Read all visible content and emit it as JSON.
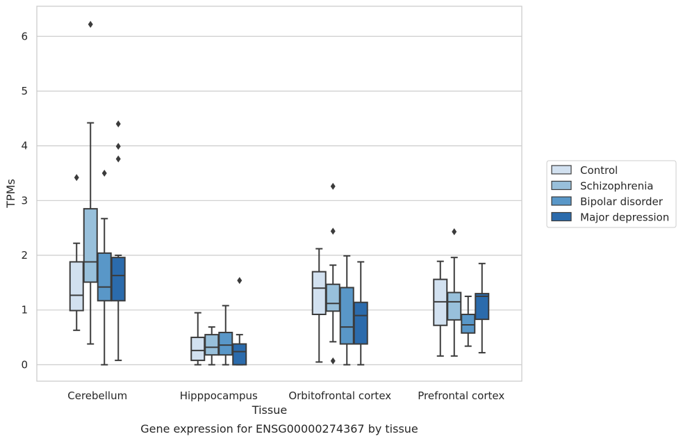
{
  "chart_data": {
    "type": "box",
    "caption": "Gene expression for ENSG00000274367 by tissue",
    "xlabel": "Tissue",
    "ylabel": "TPMs",
    "ylim": [
      -0.3,
      6.55
    ],
    "yticks": [
      0,
      1,
      2,
      3,
      4,
      5,
      6
    ],
    "grid": "horizontal",
    "legend_position": "right",
    "categories": [
      "Cerebellum",
      "Hipppocampus",
      "Orbitofrontal cortex",
      "Prefrontal cortex"
    ],
    "series": [
      {
        "name": "Control",
        "color": "#d2e1f0",
        "boxes": [
          {
            "whislo": 0.63,
            "q1": 0.99,
            "med": 1.27,
            "q3": 1.88,
            "whishi": 2.22,
            "fliers": [
              3.42
            ]
          },
          {
            "whislo": 0.0,
            "q1": 0.08,
            "med": 0.26,
            "q3": 0.5,
            "whishi": 0.95,
            "fliers": []
          },
          {
            "whislo": 0.05,
            "q1": 0.92,
            "med": 1.4,
            "q3": 1.7,
            "whishi": 2.12,
            "fliers": []
          },
          {
            "whislo": 0.16,
            "q1": 0.72,
            "med": 1.15,
            "q3": 1.56,
            "whishi": 1.89,
            "fliers": []
          }
        ]
      },
      {
        "name": "Schizophrenia",
        "color": "#98c0db",
        "boxes": [
          {
            "whislo": 0.38,
            "q1": 1.51,
            "med": 1.88,
            "q3": 2.85,
            "whishi": 4.42,
            "fliers": [
              6.22
            ]
          },
          {
            "whislo": 0.0,
            "q1": 0.18,
            "med": 0.32,
            "q3": 0.55,
            "whishi": 0.69,
            "fliers": []
          },
          {
            "whislo": 0.42,
            "q1": 0.98,
            "med": 1.12,
            "q3": 1.47,
            "whishi": 1.82,
            "fliers": [
              3.26,
              2.44,
              0.07
            ]
          },
          {
            "whislo": 0.16,
            "q1": 0.82,
            "med": 1.15,
            "q3": 1.32,
            "whishi": 1.96,
            "fliers": [
              2.43
            ]
          }
        ]
      },
      {
        "name": "Bipolar disorder",
        "color": "#5997c8",
        "boxes": [
          {
            "whislo": 0.0,
            "q1": 1.17,
            "med": 1.42,
            "q3": 2.04,
            "whishi": 2.67,
            "fliers": [
              3.5
            ]
          },
          {
            "whislo": 0.0,
            "q1": 0.18,
            "med": 0.36,
            "q3": 0.59,
            "whishi": 1.08,
            "fliers": []
          },
          {
            "whislo": 0.0,
            "q1": 0.38,
            "med": 0.69,
            "q3": 1.41,
            "whishi": 1.99,
            "fliers": []
          },
          {
            "whislo": 0.34,
            "q1": 0.58,
            "med": 0.73,
            "q3": 0.92,
            "whishi": 1.25,
            "fliers": []
          }
        ]
      },
      {
        "name": "Major depression",
        "color": "#2b6bac",
        "boxes": [
          {
            "whislo": 0.08,
            "q1": 1.17,
            "med": 1.63,
            "q3": 1.96,
            "whishi": 2.0,
            "fliers": [
              4.4,
              3.99,
              3.76
            ]
          },
          {
            "whislo": 0.0,
            "q1": 0.0,
            "med": 0.24,
            "q3": 0.38,
            "whishi": 0.55,
            "fliers": [
              1.54
            ]
          },
          {
            "whislo": 0.0,
            "q1": 0.38,
            "med": 0.9,
            "q3": 1.14,
            "whishi": 1.88,
            "fliers": []
          },
          {
            "whislo": 0.22,
            "q1": 0.83,
            "med": 1.25,
            "q3": 1.3,
            "whishi": 1.85,
            "fliers": []
          }
        ]
      }
    ]
  }
}
